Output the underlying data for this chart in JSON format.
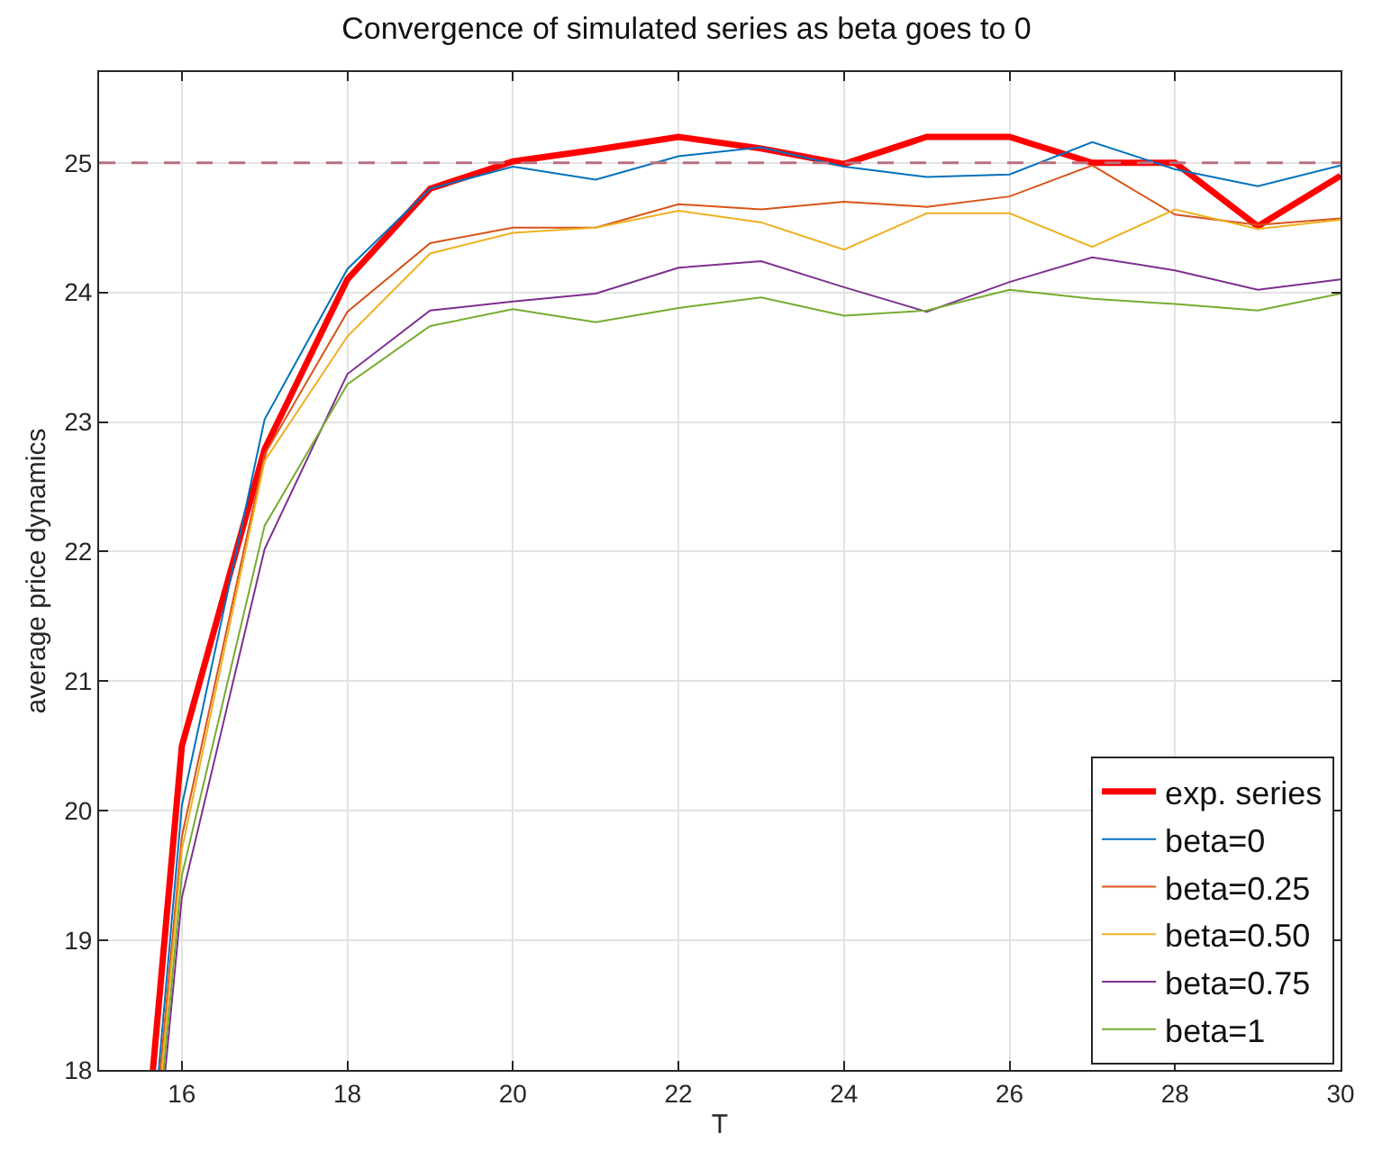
{
  "chart_data": {
    "type": "line",
    "title": "Convergence of simulated series as beta goes to 0",
    "xlabel": "T",
    "ylabel": "average price dynamics",
    "xlim": [
      15,
      30
    ],
    "ylim": [
      18,
      25.7
    ],
    "xticks": [
      16,
      18,
      20,
      22,
      24,
      26,
      28,
      30
    ],
    "yticks": [
      18,
      19,
      20,
      21,
      22,
      23,
      24,
      25
    ],
    "grid": true,
    "legend": "bottom right",
    "ref_lines": [
      {
        "axis": "y",
        "value": 25,
        "color": "#b8707e",
        "line_style": "dashed"
      }
    ],
    "series": [
      {
        "name": "exp. series",
        "color": "#ff0000",
        "x": [
          15.65,
          16,
          17,
          18,
          19,
          20,
          21,
          22,
          23,
          24,
          25,
          26,
          27,
          28,
          29,
          30
        ],
        "values": [
          18,
          20.5,
          22.79,
          24.1,
          24.8,
          25.01,
          25.1,
          25.2,
          25.11,
          24.99,
          25.2,
          25.2,
          25.0,
          25.0,
          24.51,
          24.9
        ]
      },
      {
        "name": "beta=0",
        "color": "#0072bd",
        "x": [
          15.72,
          16,
          17,
          18,
          19,
          20,
          21,
          22,
          23,
          24,
          25,
          26,
          27,
          28,
          29,
          30
        ],
        "values": [
          18,
          20.04,
          23.02,
          24.18,
          24.8,
          24.97,
          24.87,
          25.05,
          25.12,
          24.97,
          24.89,
          24.91,
          25.16,
          24.95,
          24.82,
          24.98
        ]
      },
      {
        "name": "beta=0.25",
        "color": "#d95319",
        "x": [
          15.74,
          16,
          17,
          18,
          19,
          20,
          21,
          22,
          23,
          24,
          25,
          26,
          27,
          28,
          29,
          30
        ],
        "values": [
          18,
          19.8,
          22.75,
          23.85,
          24.38,
          24.5,
          24.5,
          24.68,
          24.64,
          24.7,
          24.66,
          24.74,
          24.98,
          24.6,
          24.52,
          24.57
        ]
      },
      {
        "name": "beta=0.50",
        "color": "#edb120",
        "x": [
          15.76,
          16,
          17,
          18,
          19,
          20,
          21,
          22,
          23,
          24,
          25,
          26,
          27,
          28,
          29,
          30
        ],
        "values": [
          18,
          19.7,
          22.7,
          23.66,
          24.3,
          24.46,
          24.5,
          24.63,
          24.54,
          24.33,
          24.61,
          24.61,
          24.35,
          24.64,
          24.49,
          24.56
        ]
      },
      {
        "name": "beta=0.75",
        "color": "#7e2f8e",
        "x": [
          15.8,
          16,
          17,
          18,
          19,
          20,
          21,
          22,
          23,
          24,
          25,
          26,
          27,
          28,
          29,
          30
        ],
        "values": [
          18,
          19.33,
          22.02,
          23.37,
          23.86,
          23.93,
          23.99,
          24.19,
          24.24,
          24.04,
          23.85,
          24.08,
          24.27,
          24.17,
          24.02,
          24.1
        ]
      },
      {
        "name": "beta=1",
        "color": "#77ac30",
        "x": [
          15.78,
          16,
          17,
          18,
          19,
          20,
          21,
          22,
          23,
          24,
          25,
          26,
          27,
          28,
          29,
          30
        ],
        "values": [
          18,
          19.5,
          22.2,
          23.29,
          23.74,
          23.87,
          23.77,
          23.88,
          23.96,
          23.82,
          23.86,
          24.02,
          23.95,
          23.91,
          23.86,
          23.99
        ]
      }
    ]
  }
}
